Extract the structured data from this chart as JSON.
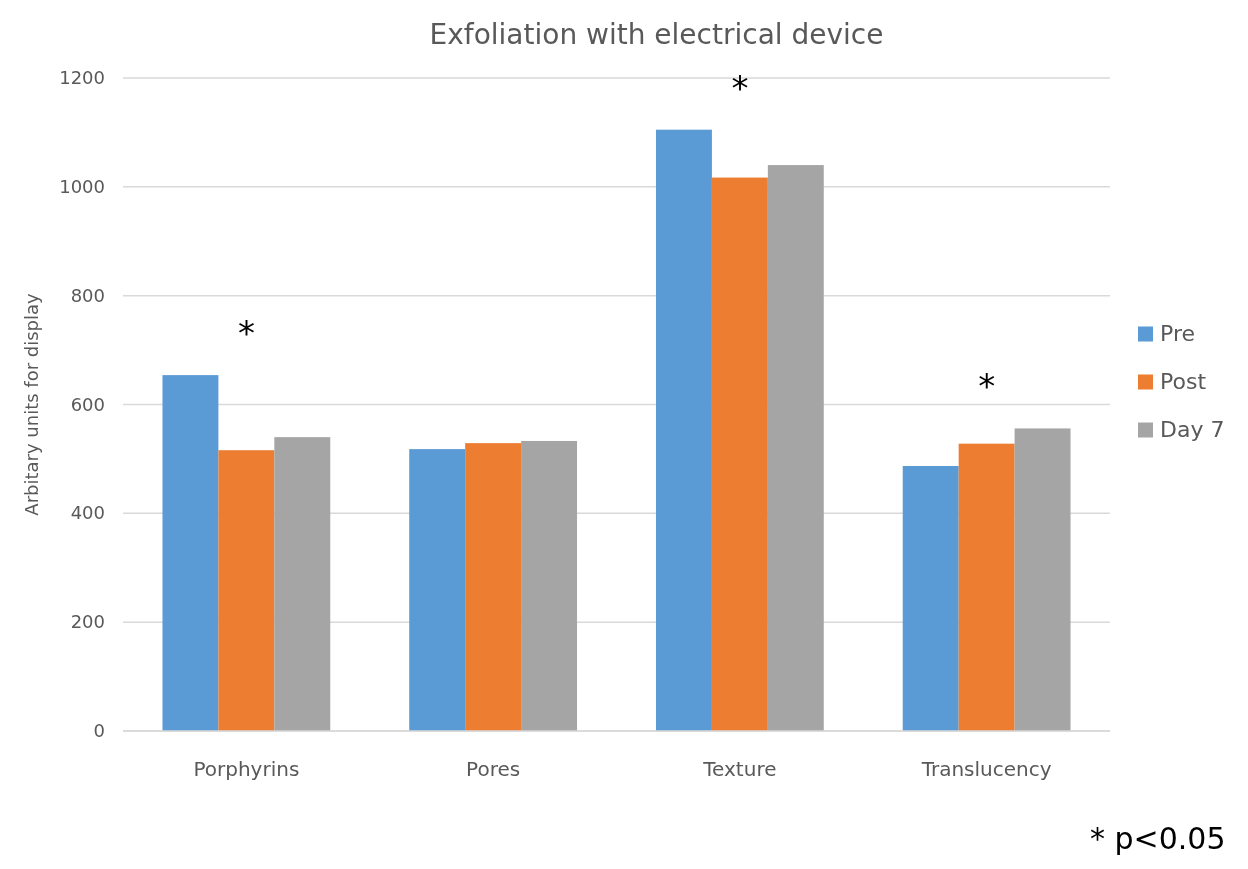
{
  "chart_data": {
    "type": "bar",
    "title": "Exfoliation with electrical device",
    "ylabel": "Arbitary units for display",
    "categories": [
      "Porphyrins",
      "Pores",
      "Texture",
      "Translucency"
    ],
    "series": [
      {
        "name": "Pre",
        "color": "#5b9bd5",
        "values": [
          654,
          518,
          1105,
          487
        ]
      },
      {
        "name": "Post",
        "color": "#ed7d31",
        "values": [
          516,
          529,
          1017,
          528
        ]
      },
      {
        "name": "Day 7",
        "color": "#a5a5a5",
        "values": [
          540,
          533,
          1040,
          556
        ]
      }
    ],
    "ylim": [
      0,
      1200
    ],
    "yticks": [
      0,
      200,
      400,
      600,
      800,
      1000,
      1200
    ],
    "grid": "y",
    "legend": "right",
    "annotations": [
      "*",
      "*",
      "*",
      "* p<0.05"
    ]
  }
}
